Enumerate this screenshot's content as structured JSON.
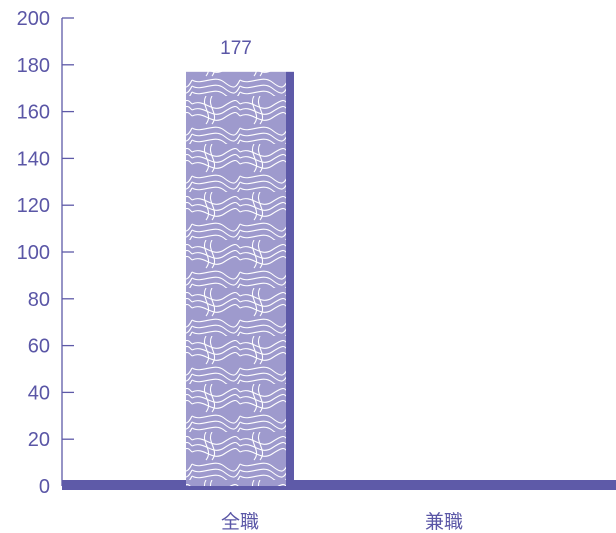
{
  "chart_data": {
    "type": "bar",
    "categories": [
      "全職",
      "兼職"
    ],
    "values": [
      177,
      0
    ],
    "data_labels": [
      "177",
      ""
    ],
    "ylim": [
      0,
      200
    ],
    "yticks": [
      0,
      20,
      40,
      60,
      80,
      100,
      120,
      140,
      160,
      180,
      200
    ],
    "ytick_labels": [
      "0",
      "20",
      "40",
      "60",
      "80",
      "100",
      "120",
      "140",
      "160",
      "180",
      "200"
    ],
    "grid": false,
    "legend": "none",
    "colors": {
      "bar_fill": "#9e9acd",
      "bar_edge": "#5e5aa8",
      "pattern_line": "#ffffff",
      "axis": "#5e5aa8",
      "text": "#5a56a6"
    }
  }
}
